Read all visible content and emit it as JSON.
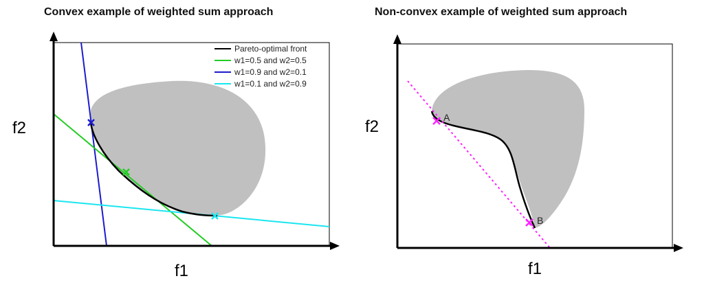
{
  "left_panel": {
    "title": "Convex example of weighted sum approach",
    "x_label": "f1",
    "y_label": "f2",
    "legend": [
      {
        "label": "Pareto-optimal front",
        "color": "#000000"
      },
      {
        "label": "w1=0.5 and w2=0.5",
        "color": "#22cc22"
      },
      {
        "label": "w1=0.9 and w2=0.1",
        "color": "#1a1acc"
      },
      {
        "label": "w1=0.1 and w2=0.9",
        "color": "#19e6f0"
      }
    ]
  },
  "right_panel": {
    "title": "Non-convex example of weighted sum approach",
    "x_label": "f1",
    "y_label": "f2",
    "point_a": "A",
    "point_b": "B",
    "line_color": "#ff22ff"
  },
  "colors": {
    "region": "#c0c0c0",
    "axis": "#000000",
    "front": "#000000"
  }
}
